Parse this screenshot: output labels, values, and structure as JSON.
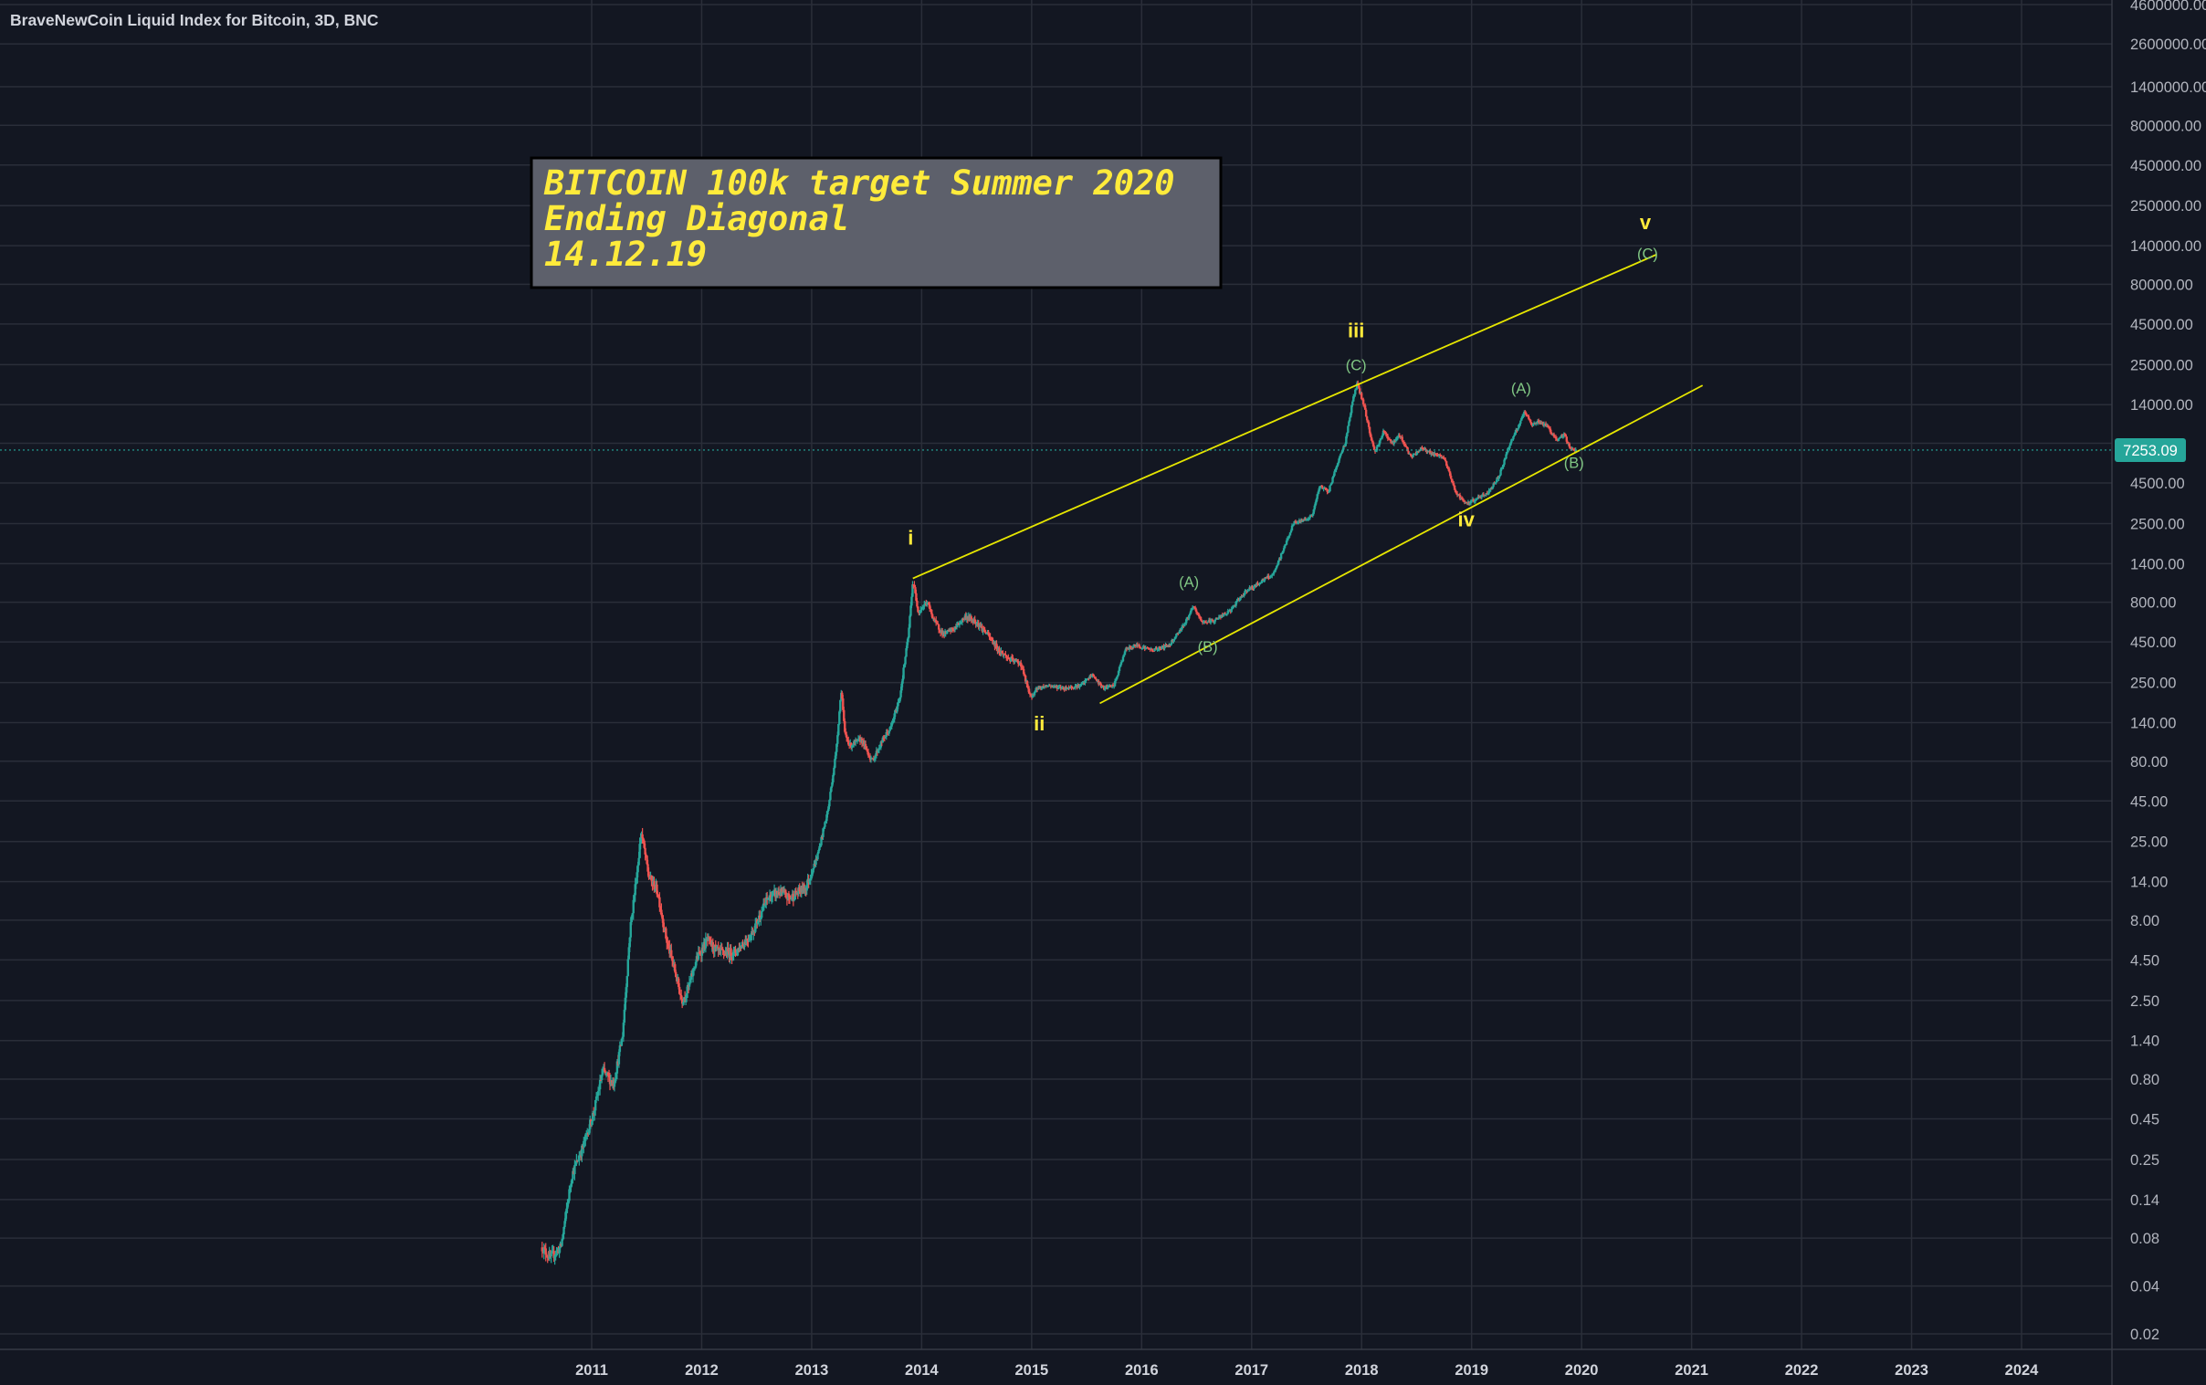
{
  "chart_data": {
    "type": "candlestick",
    "title": "BraveNewCoin Liquid Index for Bitcoin, 3D, BNC",
    "yscale": "log",
    "ylim": [
      0.015,
      4600000
    ],
    "xlim": [
      2010.12,
      2024.99
    ],
    "y_ticks": [
      "4600000.00",
      "2600000.00",
      "1400000.00",
      "800000.00",
      "450000.00",
      "250000.00",
      "140000.00",
      "80000.00",
      "45000.00",
      "25000.00",
      "14000.00",
      "8000.00",
      "4500.00",
      "2500.00",
      "1400.00",
      "800.00",
      "450.00",
      "250.00",
      "140.00",
      "80.00",
      "45.00",
      "25.00",
      "14.00",
      "8.00",
      "4.50",
      "2.50",
      "1.40",
      "0.80",
      "0.45",
      "0.25",
      "0.14",
      "0.08",
      "0.04",
      "0.02"
    ],
    "x_ticks": [
      "2011",
      "2012",
      "2013",
      "2014",
      "2015",
      "2016",
      "2017",
      "2018",
      "2019",
      "2020",
      "2021",
      "2022",
      "2023",
      "2024"
    ],
    "last_price": {
      "label": "7253.09",
      "value": 7253.09
    },
    "price_path": [
      {
        "x": 2010.55,
        "y": 0.07
      },
      {
        "x": 2010.62,
        "y": 0.06
      },
      {
        "x": 2010.72,
        "y": 0.07
      },
      {
        "x": 2010.82,
        "y": 0.2
      },
      {
        "x": 2010.92,
        "y": 0.3
      },
      {
        "x": 2011.02,
        "y": 0.5
      },
      {
        "x": 2011.1,
        "y": 0.9
      },
      {
        "x": 2011.2,
        "y": 0.75
      },
      {
        "x": 2011.28,
        "y": 1.5
      },
      {
        "x": 2011.35,
        "y": 7
      },
      {
        "x": 2011.42,
        "y": 18
      },
      {
        "x": 2011.45,
        "y": 29
      },
      {
        "x": 2011.52,
        "y": 15
      },
      {
        "x": 2011.6,
        "y": 12
      },
      {
        "x": 2011.68,
        "y": 6
      },
      {
        "x": 2011.75,
        "y": 4
      },
      {
        "x": 2011.82,
        "y": 2.5
      },
      {
        "x": 2011.88,
        "y": 3
      },
      {
        "x": 2011.95,
        "y": 4.5
      },
      {
        "x": 2012.05,
        "y": 6
      },
      {
        "x": 2012.15,
        "y": 5
      },
      {
        "x": 2012.3,
        "y": 5
      },
      {
        "x": 2012.45,
        "y": 6.5
      },
      {
        "x": 2012.6,
        "y": 11
      },
      {
        "x": 2012.7,
        "y": 12
      },
      {
        "x": 2012.8,
        "y": 11
      },
      {
        "x": 2012.95,
        "y": 13
      },
      {
        "x": 2013.05,
        "y": 20
      },
      {
        "x": 2013.15,
        "y": 40
      },
      {
        "x": 2013.22,
        "y": 90
      },
      {
        "x": 2013.27,
        "y": 230
      },
      {
        "x": 2013.3,
        "y": 120
      },
      {
        "x": 2013.35,
        "y": 100
      },
      {
        "x": 2013.45,
        "y": 110
      },
      {
        "x": 2013.55,
        "y": 80
      },
      {
        "x": 2013.65,
        "y": 110
      },
      {
        "x": 2013.72,
        "y": 130
      },
      {
        "x": 2013.8,
        "y": 200
      },
      {
        "x": 2013.88,
        "y": 500
      },
      {
        "x": 2013.92,
        "y": 1100
      },
      {
        "x": 2013.97,
        "y": 700
      },
      {
        "x": 2014.05,
        "y": 800
      },
      {
        "x": 2014.12,
        "y": 600
      },
      {
        "x": 2014.2,
        "y": 500
      },
      {
        "x": 2014.3,
        "y": 550
      },
      {
        "x": 2014.4,
        "y": 650
      },
      {
        "x": 2014.5,
        "y": 600
      },
      {
        "x": 2014.6,
        "y": 500
      },
      {
        "x": 2014.7,
        "y": 400
      },
      {
        "x": 2014.8,
        "y": 350
      },
      {
        "x": 2014.9,
        "y": 330
      },
      {
        "x": 2014.99,
        "y": 200
      },
      {
        "x": 2015.05,
        "y": 230
      },
      {
        "x": 2015.15,
        "y": 240
      },
      {
        "x": 2015.3,
        "y": 230
      },
      {
        "x": 2015.45,
        "y": 240
      },
      {
        "x": 2015.55,
        "y": 280
      },
      {
        "x": 2015.65,
        "y": 230
      },
      {
        "x": 2015.75,
        "y": 240
      },
      {
        "x": 2015.85,
        "y": 400
      },
      {
        "x": 2015.95,
        "y": 430
      },
      {
        "x": 2016.1,
        "y": 400
      },
      {
        "x": 2016.25,
        "y": 430
      },
      {
        "x": 2016.4,
        "y": 600
      },
      {
        "x": 2016.47,
        "y": 750
      },
      {
        "x": 2016.55,
        "y": 600
      },
      {
        "x": 2016.65,
        "y": 610
      },
      {
        "x": 2016.8,
        "y": 700
      },
      {
        "x": 2016.95,
        "y": 950
      },
      {
        "x": 2017.02,
        "y": 1000
      },
      {
        "x": 2017.1,
        "y": 1100
      },
      {
        "x": 2017.2,
        "y": 1200
      },
      {
        "x": 2017.3,
        "y": 1800
      },
      {
        "x": 2017.38,
        "y": 2500
      },
      {
        "x": 2017.45,
        "y": 2600
      },
      {
        "x": 2017.55,
        "y": 2800
      },
      {
        "x": 2017.62,
        "y": 4300
      },
      {
        "x": 2017.7,
        "y": 4000
      },
      {
        "x": 2017.78,
        "y": 6000
      },
      {
        "x": 2017.85,
        "y": 8000
      },
      {
        "x": 2017.92,
        "y": 15000
      },
      {
        "x": 2017.96,
        "y": 19000
      },
      {
        "x": 2018.02,
        "y": 14000
      },
      {
        "x": 2018.08,
        "y": 9000
      },
      {
        "x": 2018.12,
        "y": 7000
      },
      {
        "x": 2018.2,
        "y": 9500
      },
      {
        "x": 2018.28,
        "y": 8000
      },
      {
        "x": 2018.35,
        "y": 9000
      },
      {
        "x": 2018.45,
        "y": 6500
      },
      {
        "x": 2018.55,
        "y": 7500
      },
      {
        "x": 2018.65,
        "y": 6800
      },
      {
        "x": 2018.75,
        "y": 6500
      },
      {
        "x": 2018.85,
        "y": 4000
      },
      {
        "x": 2018.95,
        "y": 3300
      },
      {
        "x": 2019.05,
        "y": 3600
      },
      {
        "x": 2019.15,
        "y": 3900
      },
      {
        "x": 2019.25,
        "y": 5000
      },
      {
        "x": 2019.35,
        "y": 8000
      },
      {
        "x": 2019.42,
        "y": 10000
      },
      {
        "x": 2019.48,
        "y": 12500
      },
      {
        "x": 2019.55,
        "y": 10500
      },
      {
        "x": 2019.62,
        "y": 11000
      },
      {
        "x": 2019.7,
        "y": 10000
      },
      {
        "x": 2019.78,
        "y": 8200
      },
      {
        "x": 2019.84,
        "y": 9200
      },
      {
        "x": 2019.9,
        "y": 7300
      },
      {
        "x": 2019.95,
        "y": 7253.09
      }
    ],
    "trend_lines": [
      {
        "name": "upper-channel",
        "x1": 2013.92,
        "y1": 1130,
        "x2": 2020.68,
        "y2": 123000
      },
      {
        "name": "lower-channel",
        "x1": 2015.62,
        "y1": 185,
        "x2": 2021.1,
        "y2": 18500
      }
    ],
    "annotations": [
      {
        "id": "wave-i",
        "text": "i",
        "x": 2013.9,
        "y": 1850,
        "level": "major"
      },
      {
        "id": "wave-ii",
        "text": "ii",
        "x": 2015.07,
        "y": 125,
        "level": "major"
      },
      {
        "id": "wave-iii",
        "text": "iii",
        "x": 2017.95,
        "y": 37000,
        "level": "major"
      },
      {
        "id": "wave-iv",
        "text": "iv",
        "x": 2018.95,
        "y": 2400,
        "level": "major"
      },
      {
        "id": "wave-v",
        "text": "v",
        "x": 2020.58,
        "y": 178000,
        "level": "major"
      },
      {
        "id": "sub-a-1",
        "text": "(A)",
        "x": 2016.43,
        "y": 1000,
        "level": "minor"
      },
      {
        "id": "sub-b-1",
        "text": "(B)",
        "x": 2016.6,
        "y": 390,
        "level": "minor"
      },
      {
        "id": "sub-c-1",
        "text": "(C)",
        "x": 2017.95,
        "y": 23000,
        "level": "minor"
      },
      {
        "id": "sub-a-2",
        "text": "(A)",
        "x": 2019.45,
        "y": 16500,
        "level": "minor"
      },
      {
        "id": "sub-b-2",
        "text": "(B)",
        "x": 2019.93,
        "y": 5600,
        "level": "minor"
      },
      {
        "id": "sub-c-2",
        "text": "(C)",
        "x": 2020.6,
        "y": 116000,
        "level": "minor"
      }
    ]
  },
  "note": {
    "lines": [
      "BITCOIN 100k target Summer 2020",
      "Ending Diagonal",
      "14.12.19"
    ]
  },
  "colors": {
    "background": "#131722",
    "up": "#26a69a",
    "down": "#ef5350",
    "channel": "#e6e600",
    "wave_major": "#ffeb3b",
    "wave_minor": "#81c784",
    "price_badge": "#26a69a",
    "note_bg": "#5d606b",
    "note_text": "#ffeb3b"
  }
}
